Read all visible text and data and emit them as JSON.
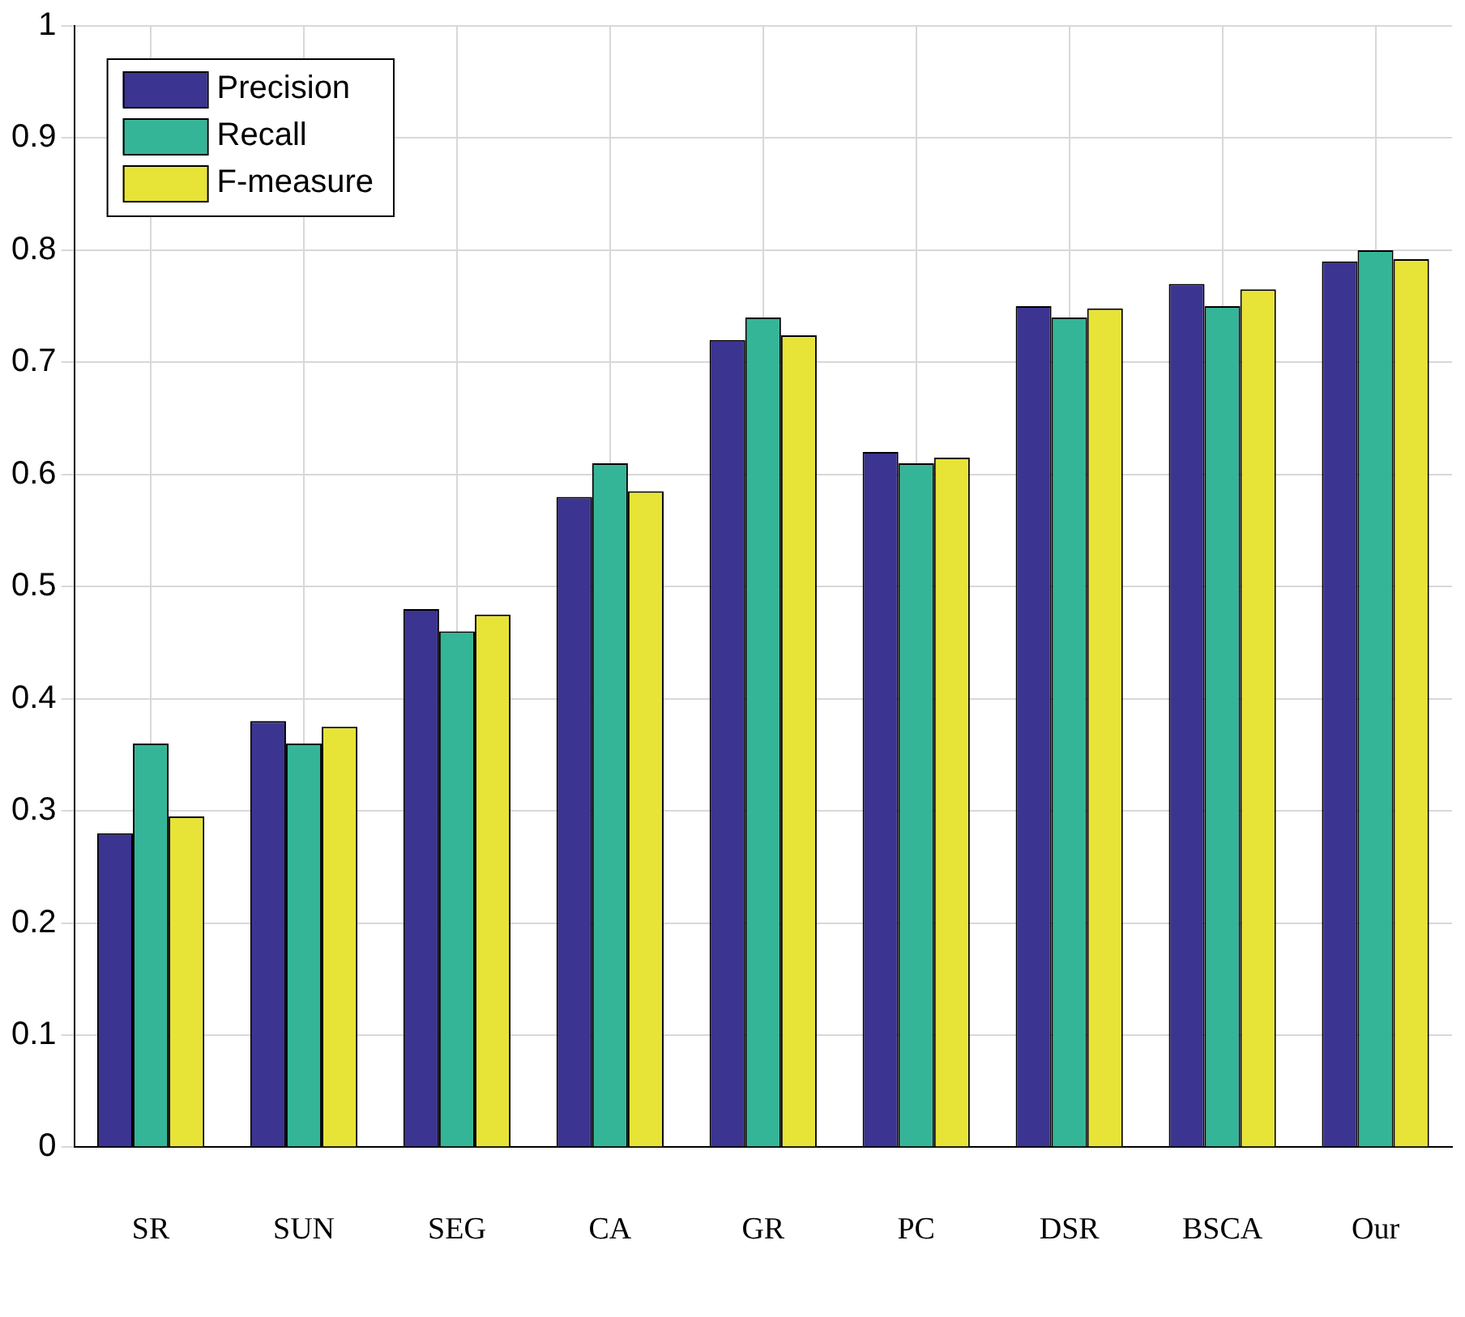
{
  "chart_data": {
    "type": "bar",
    "categories": [
      "SR",
      "SUN",
      "SEG",
      "CA",
      "GR",
      "PC",
      "DSR",
      "BSCA",
      "Our"
    ],
    "series": [
      {
        "name": "Precision",
        "color": "#3b3491",
        "values": [
          0.28,
          0.38,
          0.48,
          0.58,
          0.72,
          0.62,
          0.75,
          0.77,
          0.79
        ]
      },
      {
        "name": "Recall",
        "color": "#35b597",
        "values": [
          0.36,
          0.36,
          0.46,
          0.61,
          0.74,
          0.61,
          0.74,
          0.75,
          0.8
        ]
      },
      {
        "name": "F-measure",
        "color": "#e8e337",
        "values": [
          0.295,
          0.375,
          0.475,
          0.585,
          0.724,
          0.615,
          0.748,
          0.765,
          0.792
        ]
      }
    ],
    "ylim": [
      0,
      1
    ],
    "yticks": [
      0,
      0.1,
      0.2,
      0.3,
      0.4,
      0.5,
      0.6,
      0.7,
      0.8,
      0.9,
      1
    ],
    "grid": true,
    "legend": "top left"
  }
}
